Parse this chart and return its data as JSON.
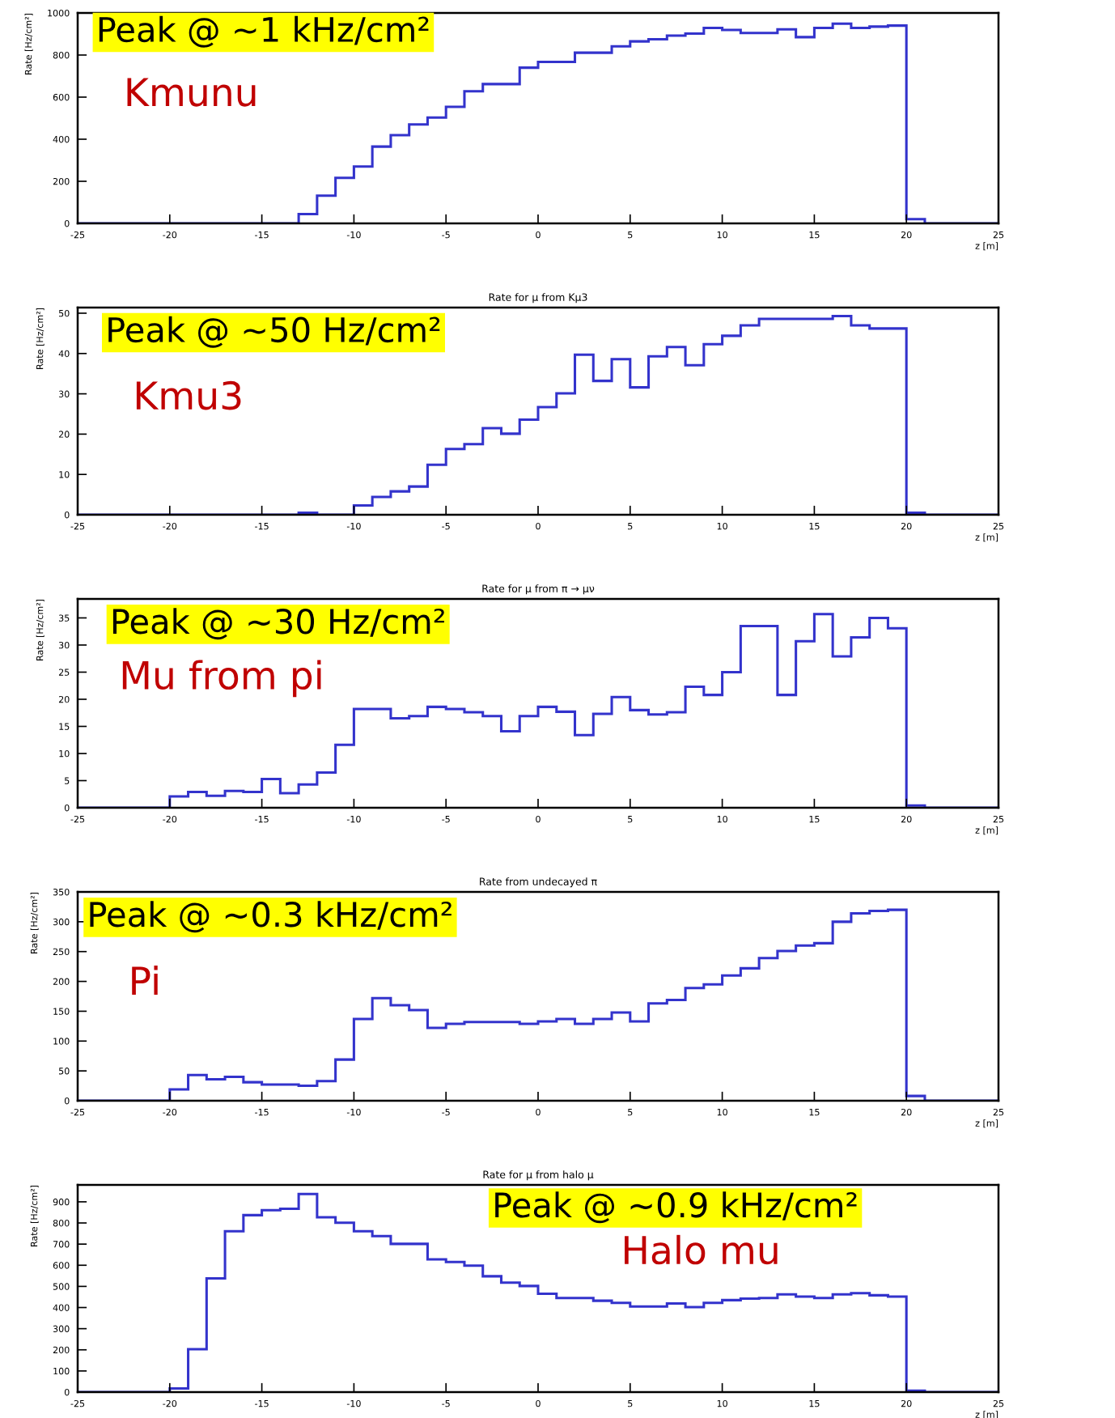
{
  "chart_data": [
    {
      "type": "histogram",
      "xlabel": "z [m]",
      "ylabel": "Rate [Hz/cm²]",
      "color": "#3333cc",
      "grid": false,
      "bins": [
        -25,
        -24,
        -23,
        -22,
        -21,
        -20,
        -19,
        -18,
        -17,
        -16,
        -15,
        -14,
        -13,
        -12,
        -11,
        -10,
        -9,
        -8,
        -7,
        -6,
        -5,
        -4,
        -3,
        -2,
        -1,
        0,
        1,
        2,
        3,
        4,
        5,
        6,
        7,
        8,
        9,
        10,
        11,
        12,
        13,
        14,
        15,
        16,
        17,
        18,
        19,
        20,
        21,
        22,
        23,
        24,
        25
      ],
      "values": [
        0,
        0,
        0,
        0,
        0,
        0,
        0,
        0,
        0,
        0,
        0,
        0,
        44,
        132,
        216,
        270,
        365,
        419,
        470,
        503,
        554,
        628,
        662,
        662,
        740,
        767,
        767,
        811,
        811,
        841,
        865,
        875,
        892,
        902,
        929,
        919,
        905,
        905,
        922,
        885,
        929,
        949,
        929,
        935,
        940,
        20,
        0,
        0,
        0,
        0
      ],
      "xlim": [
        -25,
        25
      ],
      "xticks": [
        -25,
        -20,
        -15,
        -10,
        -5,
        0,
        5,
        10,
        15,
        20,
        25
      ],
      "ylim": [
        0,
        1000
      ],
      "yticks": [
        0,
        200,
        400,
        600,
        800,
        1000
      ],
      "annotations": [
        "Peak @ ~1 kHz/cm²",
        "Kmunu"
      ]
    },
    {
      "type": "histogram",
      "title": "Rate for μ from Kμ3",
      "xlabel": "z [m]",
      "ylabel": "Rate [Hz/cm²]",
      "color": "#3333cc",
      "grid": false,
      "bins": [
        -25,
        -24,
        -23,
        -22,
        -21,
        -20,
        -19,
        -18,
        -17,
        -16,
        -15,
        -14,
        -13,
        -12,
        -11,
        -10,
        -9,
        -8,
        -7,
        -6,
        -5,
        -4,
        -3,
        -2,
        -1,
        0,
        1,
        2,
        3,
        4,
        5,
        6,
        7,
        8,
        9,
        10,
        11,
        12,
        13,
        14,
        15,
        16,
        17,
        18,
        19,
        20,
        21,
        22,
        23,
        24,
        25
      ],
      "values": [
        0,
        0,
        0,
        0,
        0,
        0,
        0,
        0,
        0,
        0,
        0,
        0,
        0.5,
        0,
        0,
        2.3,
        4.4,
        5.8,
        7.0,
        12.4,
        16.3,
        17.5,
        21.5,
        20.1,
        23.6,
        26.7,
        30.1,
        39.7,
        33.2,
        38.6,
        31.6,
        39.3,
        41.6,
        37.1,
        42.3,
        44.4,
        47.0,
        48.6,
        48.6,
        48.6,
        48.6,
        49.3,
        47.0,
        46.2,
        46.2,
        0.5,
        0,
        0,
        0,
        0
      ],
      "xlim": [
        -25,
        25
      ],
      "xticks": [
        -25,
        -20,
        -15,
        -10,
        -5,
        0,
        5,
        10,
        15,
        20,
        25
      ],
      "ylim": [
        0,
        51.4
      ],
      "yticks": [
        0,
        10,
        20,
        30,
        40,
        50
      ],
      "annotations": [
        "Peak @ ~50 Hz/cm²",
        "Kmu3"
      ]
    },
    {
      "type": "histogram",
      "title": "Rate for μ from π → μν",
      "xlabel": "z [m]",
      "ylabel": "Rate [Hz/cm²]",
      "color": "#3333cc",
      "grid": false,
      "bins": [
        -25,
        -24,
        -23,
        -22,
        -21,
        -20,
        -19,
        -18,
        -17,
        -16,
        -15,
        -14,
        -13,
        -12,
        -11,
        -10,
        -9,
        -8,
        -7,
        -6,
        -5,
        -4,
        -3,
        -2,
        -1,
        0,
        1,
        2,
        3,
        4,
        5,
        6,
        7,
        8,
        9,
        10,
        11,
        12,
        13,
        14,
        15,
        16,
        17,
        18,
        19,
        20,
        21,
        22,
        23,
        24,
        25
      ],
      "values": [
        0,
        0,
        0,
        0,
        0,
        2.1,
        2.9,
        2.2,
        3.1,
        2.9,
        5.3,
        2.7,
        4.3,
        6.5,
        11.6,
        18.2,
        18.2,
        16.5,
        16.9,
        18.6,
        18.2,
        17.6,
        16.9,
        14.1,
        16.9,
        18.6,
        17.7,
        13.4,
        17.3,
        20.4,
        18.0,
        17.2,
        17.6,
        22.3,
        20.8,
        25.0,
        33.5,
        33.5,
        20.8,
        30.7,
        35.7,
        27.9,
        31.4,
        35.0,
        33.1,
        0.4,
        0,
        0,
        0,
        0
      ],
      "xlim": [
        -25,
        25
      ],
      "xticks": [
        -25,
        -20,
        -15,
        -10,
        -5,
        0,
        5,
        10,
        15,
        20,
        25
      ],
      "ylim": [
        0,
        38.5
      ],
      "yticks": [
        0,
        5,
        10,
        15,
        20,
        25,
        30,
        35
      ],
      "annotations": [
        "Peak @ ~30 Hz/cm²",
        "Mu from pi"
      ]
    },
    {
      "type": "histogram",
      "title": "Rate from undecayed π",
      "xlabel": "z [m]",
      "ylabel": "Rate [Hz/cm²]",
      "color": "#3333cc",
      "grid": false,
      "bins": [
        -25,
        -24,
        -23,
        -22,
        -21,
        -20,
        -19,
        -18,
        -17,
        -16,
        -15,
        -14,
        -13,
        -12,
        -11,
        -10,
        -9,
        -8,
        -7,
        -6,
        -5,
        -4,
        -3,
        -2,
        -1,
        0,
        1,
        2,
        3,
        4,
        5,
        6,
        7,
        8,
        9,
        10,
        11,
        12,
        13,
        14,
        15,
        16,
        17,
        18,
        19,
        20,
        21,
        22,
        23,
        24,
        25
      ],
      "values": [
        0,
        0,
        0,
        0,
        0,
        19,
        43,
        36,
        40,
        31,
        27,
        27,
        25,
        33,
        69,
        137,
        172,
        160,
        152,
        122,
        129,
        132,
        132,
        132,
        129,
        133,
        137,
        129,
        137,
        148,
        133,
        163,
        169,
        189,
        195,
        210,
        222,
        239,
        251,
        260,
        264,
        300,
        314,
        318,
        320,
        8,
        0,
        0,
        0,
        0
      ],
      "xlim": [
        -25,
        25
      ],
      "xticks": [
        -25,
        -20,
        -15,
        -10,
        -5,
        0,
        5,
        10,
        15,
        20,
        25
      ],
      "ylim": [
        0,
        350
      ],
      "yticks": [
        0,
        50,
        100,
        150,
        200,
        250,
        300,
        350
      ],
      "annotations": [
        "Peak @ ~0.3 kHz/cm²",
        "Pi"
      ]
    },
    {
      "type": "histogram",
      "title": "Rate for μ from halo μ",
      "xlabel": "z [m]",
      "ylabel": "Rate [Hz/cm²]",
      "color": "#3333cc",
      "grid": false,
      "bins": [
        -25,
        -24,
        -23,
        -22,
        -21,
        -20,
        -19,
        -18,
        -17,
        -16,
        -15,
        -14,
        -13,
        -12,
        -11,
        -10,
        -9,
        -8,
        -7,
        -6,
        -5,
        -4,
        -3,
        -2,
        -1,
        0,
        1,
        2,
        3,
        4,
        5,
        6,
        7,
        8,
        9,
        10,
        11,
        12,
        13,
        14,
        15,
        16,
        17,
        18,
        19,
        20,
        21,
        22,
        23,
        24,
        25
      ],
      "values": [
        0,
        0,
        0,
        0,
        0,
        17,
        203,
        538,
        761,
        837,
        860,
        867,
        937,
        827,
        801,
        761,
        738,
        701,
        701,
        628,
        615,
        598,
        548,
        518,
        502,
        465,
        445,
        445,
        432,
        422,
        405,
        405,
        419,
        402,
        422,
        435,
        442,
        445,
        462,
        452,
        445,
        462,
        468,
        458,
        452,
        7,
        0,
        0,
        0,
        0
      ],
      "xlim": [
        -25,
        25
      ],
      "xticks": [
        -25,
        -20,
        -15,
        -10,
        -5,
        0,
        5,
        10,
        15,
        20,
        25
      ],
      "ylim": [
        0,
        980
      ],
      "yticks": [
        0,
        100,
        200,
        300,
        400,
        500,
        600,
        700,
        800,
        900
      ],
      "annotations": [
        "Peak @ ~0.9 kHz/cm²",
        "Halo mu"
      ]
    }
  ]
}
